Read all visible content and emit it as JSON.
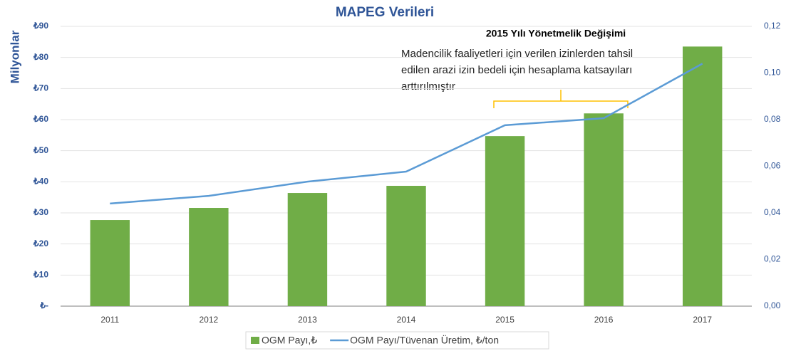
{
  "chart_data": {
    "type": "bar_line",
    "title": "MAPEG Verileri",
    "y_label": "Milyonlar",
    "categories": [
      "2011",
      "2012",
      "2013",
      "2014",
      "2015",
      "2016",
      "2017"
    ],
    "series": [
      {
        "name": "OGM Payı,₺",
        "type": "bar",
        "color": "#70ad47",
        "values": [
          27.7,
          31.6,
          36.4,
          38.7,
          54.7,
          62,
          83.5
        ]
      },
      {
        "name": "OGM Payı/Tüvenan Üretim, ₺/ton",
        "type": "line",
        "axis": "y2",
        "color": "#5b9bd5",
        "values": [
          0.044,
          0.0473,
          0.0534,
          0.0577,
          0.0776,
          0.0806,
          0.104
        ]
      }
    ],
    "ylim": [
      0,
      90
    ],
    "yticks": [
      {
        "value": 0,
        "label": "₺-"
      },
      {
        "value": 10,
        "label": "₺10"
      },
      {
        "value": 20,
        "label": "₺20"
      },
      {
        "value": 30,
        "label": "₺30"
      },
      {
        "value": 40,
        "label": "₺40"
      },
      {
        "value": 50,
        "label": "₺50"
      },
      {
        "value": 60,
        "label": "₺60"
      },
      {
        "value": 70,
        "label": "₺70"
      },
      {
        "value": 80,
        "label": "₺80"
      },
      {
        "value": 90,
        "label": "₺90"
      }
    ],
    "y2lim": [
      0,
      0.12
    ],
    "y2ticks": [
      {
        "value": 0,
        "label": "0,00"
      },
      {
        "value": 0.02,
        "label": "0,02"
      },
      {
        "value": 0.04,
        "label": "0,04"
      },
      {
        "value": 0.06,
        "label": "0,06"
      },
      {
        "value": 0.08,
        "label": "0,08"
      },
      {
        "value": 0.1,
        "label": "0,10"
      },
      {
        "value": 0.12,
        "label": "0,12"
      }
    ],
    "grid": true,
    "legend": "bottom",
    "annotation": {
      "title": "2015 Yılı Yönetmelik Değişimi",
      "lines": [
        "Madencilik faaliyetleri için verilen izinlerden tahsil",
        "edilen arazi izin bedeli için hesaplama katsayıları",
        "arttırılmıştır"
      ]
    }
  }
}
